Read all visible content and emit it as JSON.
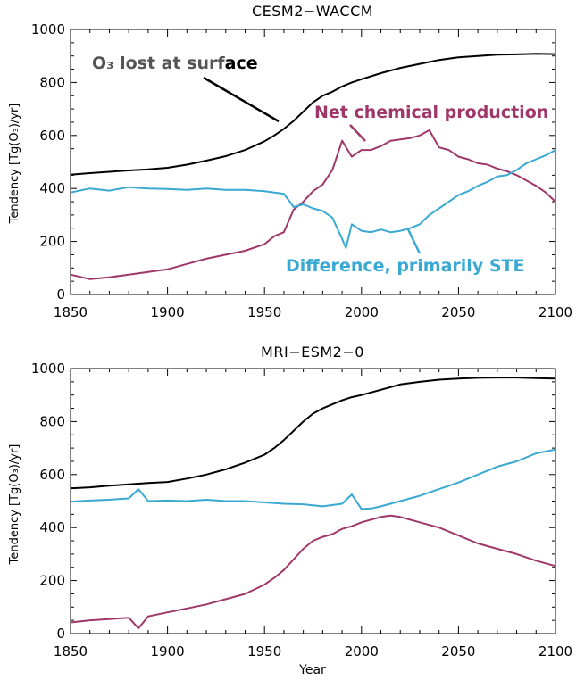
{
  "colors": {
    "surface_loss": "#000000",
    "net_chemical": "#a0376a",
    "difference": "#3aa9d2",
    "annotation_gray": "#555555"
  },
  "chart_data": [
    {
      "type": "line",
      "title": "CESM2−WACCM",
      "xlabel": "",
      "ylabel": "Tendency [Tg(O₃)/yr]",
      "xlim": [
        1850,
        2100
      ],
      "ylim": [
        0,
        1000
      ],
      "xticks": [
        "1850",
        "1900",
        "1950",
        "2000",
        "2050",
        "2100"
      ],
      "yticks": [
        "0",
        "200",
        "400",
        "600",
        "800",
        "1000"
      ],
      "annotations": {
        "surface": "O₃ lost at surf",
        "surface_bold": "ace",
        "chem": "Net chemical production",
        "diff": "Difference, primarily STE"
      },
      "series": [
        {
          "name": "O3 lost at surface",
          "color_key": "surface_loss",
          "x": [
            1850,
            1860,
            1870,
            1880,
            1890,
            1900,
            1910,
            1920,
            1930,
            1940,
            1950,
            1955,
            1960,
            1965,
            1970,
            1975,
            1980,
            1985,
            1990,
            1995,
            2000,
            2010,
            2020,
            2030,
            2040,
            2050,
            2060,
            2070,
            2080,
            2090,
            2100
          ],
          "values": [
            452,
            458,
            463,
            468,
            472,
            478,
            490,
            505,
            522,
            545,
            578,
            600,
            625,
            655,
            690,
            725,
            750,
            765,
            785,
            800,
            812,
            835,
            855,
            870,
            885,
            895,
            900,
            905,
            906,
            908,
            907
          ]
        },
        {
          "name": "Net chemical production",
          "color_key": "net_chemical",
          "x": [
            1850,
            1860,
            1870,
            1880,
            1890,
            1900,
            1910,
            1920,
            1930,
            1940,
            1950,
            1955,
            1960,
            1965,
            1970,
            1975,
            1980,
            1985,
            1990,
            1995,
            2000,
            2005,
            2010,
            2015,
            2020,
            2025,
            2030,
            2035,
            2040,
            2045,
            2050,
            2055,
            2060,
            2065,
            2070,
            2075,
            2080,
            2085,
            2090,
            2095,
            2100
          ],
          "values": [
            75,
            58,
            65,
            75,
            85,
            95,
            115,
            135,
            150,
            165,
            190,
            220,
            235,
            320,
            350,
            390,
            415,
            470,
            580,
            520,
            545,
            545,
            560,
            580,
            585,
            590,
            600,
            620,
            555,
            545,
            520,
            510,
            495,
            490,
            475,
            465,
            450,
            430,
            410,
            385,
            350
          ]
        },
        {
          "name": "Difference, primarily STE",
          "color_key": "difference",
          "x": [
            1850,
            1860,
            1870,
            1880,
            1890,
            1900,
            1910,
            1920,
            1930,
            1940,
            1950,
            1955,
            1960,
            1965,
            1970,
            1975,
            1980,
            1985,
            1990,
            1992,
            1995,
            2000,
            2005,
            2010,
            2015,
            2020,
            2025,
            2030,
            2035,
            2040,
            2045,
            2050,
            2055,
            2060,
            2065,
            2070,
            2075,
            2080,
            2085,
            2090,
            2095,
            2100
          ],
          "values": [
            385,
            400,
            392,
            405,
            400,
            398,
            395,
            400,
            395,
            395,
            390,
            385,
            380,
            330,
            340,
            325,
            315,
            290,
            210,
            175,
            265,
            240,
            235,
            245,
            235,
            240,
            250,
            265,
            300,
            325,
            350,
            375,
            390,
            410,
            425,
            445,
            450,
            470,
            495,
            510,
            525,
            545
          ]
        }
      ]
    },
    {
      "type": "line",
      "title": "MRI−ESM2−0",
      "xlabel": "Year",
      "ylabel": "Tendency [Tg(O₃)/yr]",
      "xlim": [
        1850,
        2100
      ],
      "ylim": [
        0,
        1000
      ],
      "xticks": [
        "1850",
        "1900",
        "1950",
        "2000",
        "2050",
        "2100"
      ],
      "yticks": [
        "0",
        "200",
        "400",
        "600",
        "800",
        "1000"
      ],
      "series": [
        {
          "name": "O3 lost at surface",
          "color_key": "surface_loss",
          "x": [
            1850,
            1860,
            1870,
            1880,
            1890,
            1900,
            1910,
            1920,
            1930,
            1940,
            1950,
            1955,
            1960,
            1965,
            1970,
            1975,
            1980,
            1985,
            1990,
            1995,
            2000,
            2010,
            2020,
            2030,
            2040,
            2050,
            2060,
            2070,
            2080,
            2090,
            2100
          ],
          "values": [
            548,
            552,
            558,
            563,
            568,
            572,
            585,
            600,
            620,
            645,
            675,
            700,
            730,
            765,
            800,
            830,
            850,
            865,
            880,
            892,
            900,
            920,
            940,
            950,
            958,
            962,
            965,
            966,
            966,
            964,
            962
          ]
        },
        {
          "name": "Net chemical production",
          "color_key": "net_chemical",
          "x": [
            1850,
            1860,
            1870,
            1880,
            1885,
            1890,
            1900,
            1910,
            1920,
            1930,
            1940,
            1950,
            1955,
            1960,
            1965,
            1970,
            1975,
            1980,
            1985,
            1990,
            1995,
            2000,
            2005,
            2010,
            2015,
            2020,
            2030,
            2040,
            2050,
            2060,
            2070,
            2080,
            2090,
            2100
          ],
          "values": [
            42,
            50,
            55,
            60,
            20,
            65,
            80,
            95,
            110,
            130,
            150,
            185,
            210,
            240,
            280,
            320,
            350,
            365,
            375,
            395,
            405,
            420,
            430,
            440,
            445,
            440,
            420,
            400,
            370,
            340,
            320,
            300,
            275,
            255
          ]
        },
        {
          "name": "Difference",
          "color_key": "difference",
          "x": [
            1850,
            1860,
            1870,
            1880,
            1885,
            1890,
            1900,
            1910,
            1920,
            1930,
            1940,
            1950,
            1960,
            1970,
            1980,
            1990,
            1995,
            2000,
            2005,
            2010,
            2020,
            2030,
            2040,
            2050,
            2060,
            2070,
            2080,
            2090,
            2100
          ],
          "values": [
            498,
            502,
            505,
            510,
            545,
            500,
            502,
            500,
            505,
            500,
            500,
            495,
            490,
            488,
            480,
            490,
            525,
            470,
            472,
            480,
            500,
            520,
            545,
            570,
            600,
            630,
            650,
            680,
            695
          ]
        }
      ]
    }
  ]
}
